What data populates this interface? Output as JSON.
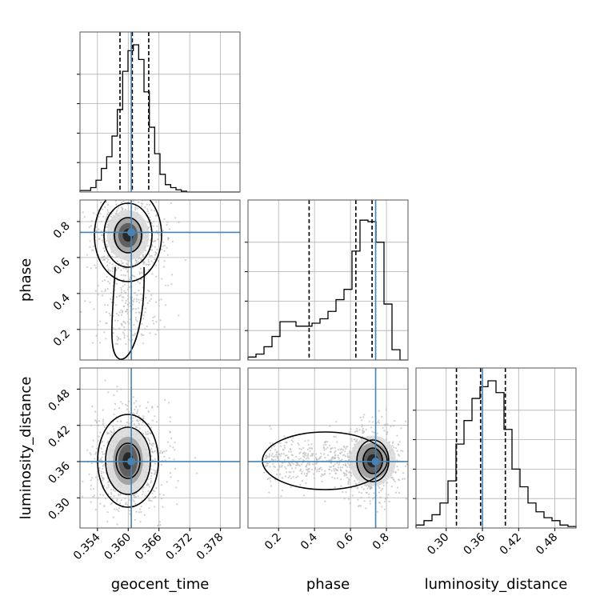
{
  "chart_data": {
    "type": "corner",
    "parameters": [
      "geocent_time",
      "phase",
      "luminosity_distance"
    ],
    "truths": {
      "geocent_time": 0.3606,
      "phase": 0.74,
      "luminosity_distance": 0.36
    },
    "quantiles": {
      "geocent_time": [
        0.3584,
        0.3608,
        0.364
      ],
      "phase": [
        0.37,
        0.63,
        0.72
      ],
      "luminosity_distance": [
        0.317,
        0.357,
        0.398
      ]
    },
    "axis_ranges": {
      "geocent_time": [
        0.3506,
        0.3818
      ],
      "phase": [
        0.03,
        0.92
      ],
      "luminosity_distance": [
        0.25,
        0.515
      ]
    },
    "ticks": {
      "geocent_time": {
        "values": [
          0.354,
          0.36,
          0.366,
          0.372,
          0.378
        ],
        "labels": [
          "0.354",
          "0.360",
          "0.366",
          "0.372",
          "0.378"
        ]
      },
      "phase": {
        "values": [
          0.2,
          0.4,
          0.6,
          0.8
        ],
        "labels": [
          "0.2",
          "0.4",
          "0.6",
          "0.8"
        ]
      },
      "luminosity_distance": {
        "values": [
          0.3,
          0.36,
          0.42,
          0.48
        ],
        "labels": [
          "0.30",
          "0.36",
          "0.42",
          "0.48"
        ]
      }
    },
    "histograms": {
      "geocent_time": [
        0.01,
        0.01,
        0.03,
        0.08,
        0.16,
        0.24,
        0.38,
        0.56,
        0.82,
        0.96,
        1.0,
        0.9,
        0.68,
        0.44,
        0.26,
        0.12,
        0.05,
        0.03,
        0.015,
        0.005,
        0,
        0,
        0,
        0,
        0,
        0,
        0,
        0,
        0,
        0
      ],
      "phase": [
        0.02,
        0.04,
        0.09,
        0.16,
        0.26,
        0.26,
        0.23,
        0.23,
        0.25,
        0.28,
        0.33,
        0.41,
        0.48,
        0.74,
        0.95,
        0.94,
        0.8,
        0.38,
        0.07,
        0.0
      ],
      "luminosity_distance": [
        0.02,
        0.05,
        0.09,
        0.17,
        0.32,
        0.57,
        0.73,
        0.88,
        0.96,
        1.0,
        0.92,
        0.67,
        0.4,
        0.28,
        0.17,
        0.11,
        0.07,
        0.05,
        0.02,
        0.01
      ]
    },
    "grid": true,
    "colors": {
      "truth": "#4682b4",
      "contour": "#000000",
      "hist": "#000000",
      "quantile": "#000000",
      "scatter": "#bbbbbb",
      "grid": "#b0b0b0",
      "frame": "#555555"
    }
  }
}
